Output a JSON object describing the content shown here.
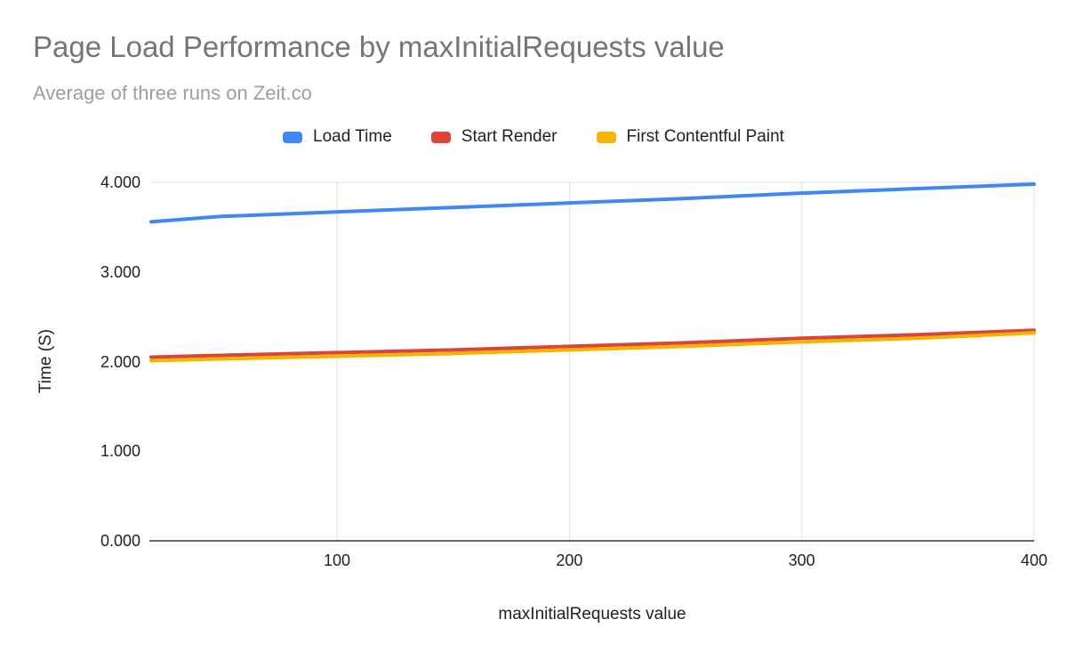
{
  "title": "Page Load Performance by maxInitialRequests value",
  "subtitle": "Average of three runs on Zeit.co",
  "legend": [
    {
      "label": "Load Time",
      "color": "#4285f4"
    },
    {
      "label": "Start Render",
      "color": "#db4437"
    },
    {
      "label": "First Contentful Paint",
      "color": "#f4b400"
    }
  ],
  "chart_data": {
    "type": "line",
    "title": "Page Load Performance by maxInitialRequests value",
    "subtitle": "Average of three runs on Zeit.co",
    "xlabel": "maxInitialRequests value",
    "ylabel": "Time (S)",
    "xlim": [
      20,
      400
    ],
    "ylim": [
      0,
      4
    ],
    "x": [
      20,
      50,
      100,
      150,
      200,
      250,
      300,
      350,
      400
    ],
    "series": [
      {
        "name": "Load Time",
        "color": "#4285f4",
        "values": [
          3.56,
          3.62,
          3.67,
          3.72,
          3.77,
          3.82,
          3.88,
          3.93,
          3.98
        ]
      },
      {
        "name": "Start Render",
        "color": "#db4437",
        "values": [
          2.05,
          2.07,
          2.1,
          2.13,
          2.17,
          2.21,
          2.26,
          2.3,
          2.35
        ]
      },
      {
        "name": "First Contentful Paint",
        "color": "#f4b400",
        "values": [
          2.01,
          2.03,
          2.06,
          2.09,
          2.13,
          2.17,
          2.22,
          2.26,
          2.32
        ]
      }
    ],
    "x_ticks": [
      {
        "value": 100,
        "label": "100"
      },
      {
        "value": 200,
        "label": "200"
      },
      {
        "value": 300,
        "label": "300"
      },
      {
        "value": 400,
        "label": "400"
      }
    ],
    "y_ticks": [
      {
        "value": 0,
        "label": "0.000"
      },
      {
        "value": 1,
        "label": "1.000"
      },
      {
        "value": 2,
        "label": "2.000"
      },
      {
        "value": 3,
        "label": "3.000"
      },
      {
        "value": 4,
        "label": "4.000"
      }
    ],
    "legend_position": "top",
    "grid": {
      "vertical": true,
      "horizontal": "top-only"
    }
  }
}
